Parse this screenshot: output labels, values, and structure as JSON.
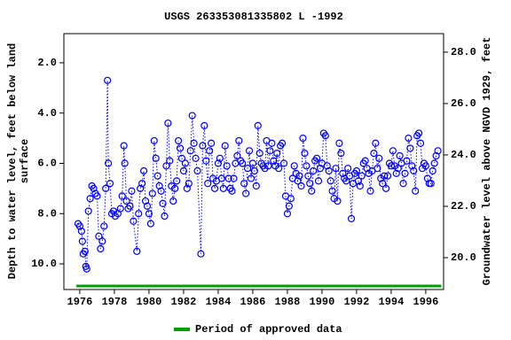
{
  "chart_data": {
    "type": "line",
    "title": "USGS 263353081335802 L  -1992",
    "y_label": [
      "Depth to water level, feet below land",
      "surface"
    ],
    "y2_label": "Groundwater level above NGVD 1929, feet",
    "color": "#0000ff",
    "xlim": [
      1975.08,
      1997.03
    ],
    "xticks": [
      1976,
      1978,
      1980,
      1982,
      1984,
      1986,
      1988,
      1990,
      1992,
      1994,
      1996
    ],
    "ylim": [
      0.84,
      11.02
    ],
    "invert_y": true,
    "yticks": [
      {
        "value": 2,
        "label": "2.0"
      },
      {
        "value": 4,
        "label": "4.0"
      },
      {
        "value": 6,
        "label": "6.0"
      },
      {
        "value": 8,
        "label": "8.0"
      },
      {
        "value": 10,
        "label": "10.0"
      }
    ],
    "y2lim": [
      18.76,
      28.72
    ],
    "y2ticks": [
      {
        "value": 20,
        "label": "20.0"
      },
      {
        "value": 22,
        "label": "22.0"
      },
      {
        "value": 24,
        "label": "24.0"
      },
      {
        "value": 26,
        "label": "26.0"
      },
      {
        "value": 28,
        "label": "28.0"
      }
    ],
    "x": [
      1975.9,
      1976.0,
      1976.1,
      1976.15,
      1976.2,
      1976.3,
      1976.35,
      1976.4,
      1976.5,
      1976.6,
      1976.7,
      1976.8,
      1976.9,
      1977.0,
      1977.1,
      1977.2,
      1977.3,
      1977.4,
      1977.5,
      1977.6,
      1977.65,
      1977.75,
      1977.85,
      1977.95,
      1978.05,
      1978.2,
      1978.35,
      1978.45,
      1978.55,
      1978.6,
      1978.7,
      1978.8,
      1978.9,
      1979.0,
      1979.1,
      1979.3,
      1979.4,
      1979.5,
      1979.6,
      1979.7,
      1979.8,
      1979.9,
      1980.0,
      1980.1,
      1980.2,
      1980.3,
      1980.4,
      1980.5,
      1980.6,
      1980.7,
      1980.8,
      1980.9,
      1981.0,
      1981.1,
      1981.2,
      1981.3,
      1981.4,
      1981.5,
      1981.6,
      1981.7,
      1981.8,
      1981.9,
      1982.0,
      1982.1,
      1982.2,
      1982.3,
      1982.4,
      1982.5,
      1982.6,
      1982.7,
      1982.8,
      1983.0,
      1983.1,
      1983.2,
      1983.3,
      1983.4,
      1983.5,
      1983.6,
      1983.7,
      1983.8,
      1983.9,
      1984.0,
      1984.1,
      1984.2,
      1984.3,
      1984.4,
      1984.5,
      1984.6,
      1984.7,
      1984.8,
      1984.9,
      1985.0,
      1985.1,
      1985.2,
      1985.3,
      1985.4,
      1985.5,
      1985.6,
      1985.7,
      1985.8,
      1985.9,
      1986.0,
      1986.1,
      1986.2,
      1986.3,
      1986.4,
      1986.5,
      1986.6,
      1986.7,
      1986.8,
      1986.9,
      1987.0,
      1987.1,
      1987.2,
      1987.3,
      1987.4,
      1987.5,
      1987.6,
      1987.7,
      1987.8,
      1987.9,
      1988.0,
      1988.1,
      1988.2,
      1988.3,
      1988.4,
      1988.5,
      1988.6,
      1988.7,
      1988.8,
      1988.9,
      1989.0,
      1989.1,
      1989.2,
      1989.3,
      1989.4,
      1989.5,
      1989.6,
      1989.7,
      1989.8,
      1989.9,
      1990.0,
      1990.1,
      1990.2,
      1990.3,
      1990.4,
      1990.5,
      1990.6,
      1990.7,
      1990.8,
      1990.9,
      1991.0,
      1991.1,
      1991.2,
      1991.3,
      1991.4,
      1991.5,
      1991.6,
      1991.7,
      1991.8,
      1991.9,
      1992.0,
      1992.1,
      1992.2,
      1992.3,
      1992.4,
      1992.5,
      1992.6,
      1992.7,
      1992.8,
      1992.9,
      1993.0,
      1993.1,
      1993.2,
      1993.3,
      1993.4,
      1993.5,
      1993.6,
      1993.7,
      1993.8,
      1993.9,
      1994.0,
      1994.1,
      1994.2,
      1994.3,
      1994.4,
      1994.5,
      1994.6,
      1994.7,
      1994.8,
      1994.9,
      1995.0,
      1995.1,
      1995.2,
      1995.3,
      1995.4,
      1995.5,
      1995.6,
      1995.7,
      1995.8,
      1995.9,
      1996.0,
      1996.1,
      1996.2,
      1996.3,
      1996.4,
      1996.5,
      1996.6,
      1996.7
    ],
    "values": [
      8.4,
      8.5,
      8.7,
      9.1,
      9.6,
      9.5,
      10.1,
      10.2,
      7.9,
      7.4,
      6.9,
      7.0,
      7.2,
      7.3,
      8.9,
      9.4,
      9.1,
      8.5,
      7.0,
      2.7,
      6.0,
      6.8,
      8.0,
      7.9,
      8.1,
      8.0,
      7.8,
      7.3,
      5.3,
      6.0,
      7.5,
      7.8,
      7.7,
      7.1,
      8.3,
      9.5,
      8.0,
      7.0,
      6.8,
      6.3,
      7.5,
      7.7,
      8.0,
      8.4,
      7.2,
      5.1,
      5.8,
      6.5,
      6.9,
      7.1,
      7.6,
      8.1,
      6.1,
      4.4,
      5.9,
      6.9,
      7.5,
      7.0,
      6.7,
      5.1,
      5.4,
      5.8,
      6.3,
      6.0,
      7.0,
      6.8,
      5.5,
      4.1,
      5.2,
      5.8,
      6.3,
      9.6,
      5.3,
      4.5,
      5.9,
      6.8,
      5.5,
      5.2,
      6.6,
      7.0,
      6.7,
      6.0,
      5.8,
      6.6,
      7.0,
      5.3,
      6.1,
      6.6,
      7.0,
      7.1,
      6.6,
      6.0,
      5.7,
      5.1,
      5.9,
      6.0,
      6.8,
      7.2,
      6.2,
      5.5,
      6.6,
      6.0,
      6.3,
      6.9,
      4.5,
      5.6,
      6.0,
      6.1,
      6.2,
      5.1,
      6.1,
      5.5,
      5.2,
      5.9,
      6.1,
      5.6,
      6.2,
      5.3,
      5.2,
      6.0,
      7.3,
      8.0,
      7.7,
      7.4,
      6.6,
      6.1,
      6.4,
      6.7,
      6.5,
      6.9,
      5.0,
      5.6,
      6.1,
      6.5,
      6.8,
      7.1,
      6.3,
      5.9,
      5.8,
      6.7,
      6.2,
      6.0,
      4.8,
      4.9,
      6.1,
      6.3,
      6.7,
      7.1,
      7.4,
      6.2,
      7.5,
      5.2,
      5.6,
      6.4,
      6.6,
      6.7,
      6.2,
      6.5,
      8.2,
      6.8,
      6.4,
      6.3,
      6.7,
      6.9,
      6.5,
      6.0,
      5.9,
      6.2,
      6.4,
      7.1,
      6.3,
      5.6,
      5.2,
      6.2,
      5.8,
      6.6,
      6.8,
      6.5,
      7.0,
      6.5,
      6.0,
      6.1,
      5.5,
      6.1,
      6.4,
      6.2,
      5.7,
      6.0,
      6.8,
      6.4,
      5.9,
      5.0,
      5.4,
      6.1,
      6.3,
      7.1,
      4.9,
      4.8,
      5.2,
      6.2,
      6.0,
      6.1,
      6.6,
      6.8,
      6.8,
      6.3,
      6.0,
      5.7,
      5.5
    ],
    "approved_period": {
      "name": "Period of approved data",
      "color": "#00a000",
      "x": [
        1975.8,
        1996.9
      ]
    }
  }
}
